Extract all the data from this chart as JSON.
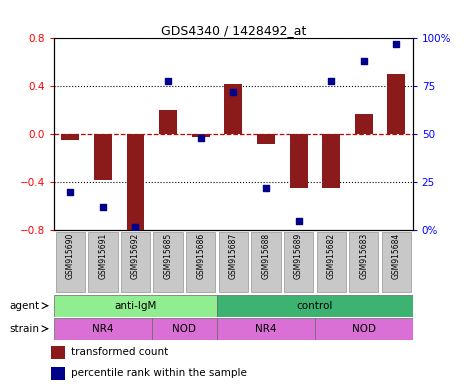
{
  "title": "GDS4340 / 1428492_at",
  "samples": [
    "GSM915690",
    "GSM915691",
    "GSM915692",
    "GSM915685",
    "GSM915686",
    "GSM915687",
    "GSM915688",
    "GSM915689",
    "GSM915682",
    "GSM915683",
    "GSM915684"
  ],
  "red_bars": [
    -0.05,
    -0.38,
    -0.82,
    0.2,
    -0.02,
    0.42,
    -0.08,
    -0.45,
    -0.45,
    0.17,
    0.5
  ],
  "percentile_rank": [
    20,
    12,
    2,
    78,
    48,
    72,
    22,
    5,
    78,
    88,
    97
  ],
  "ylim": [
    -0.8,
    0.8
  ],
  "yticks_left": [
    -0.8,
    -0.4,
    0.0,
    0.4,
    0.8
  ],
  "yticks_right": [
    0,
    25,
    50,
    75,
    100
  ],
  "y2labels": [
    "0%",
    "25",
    "50",
    "75",
    "100%"
  ],
  "bar_color": "#8B1A1A",
  "dot_color": "#00008B",
  "hline_color": "#CC0000",
  "dotted_color": "#000000",
  "agent_light_green": "#90EE90",
  "agent_bright_green": "#3CB371",
  "strain_purple": "#DA70D6",
  "legend_red": "transformed count",
  "legend_blue": "percentile rank within the sample",
  "bg_color": "#C8C8C8",
  "plot_bg": "#FFFFFF"
}
